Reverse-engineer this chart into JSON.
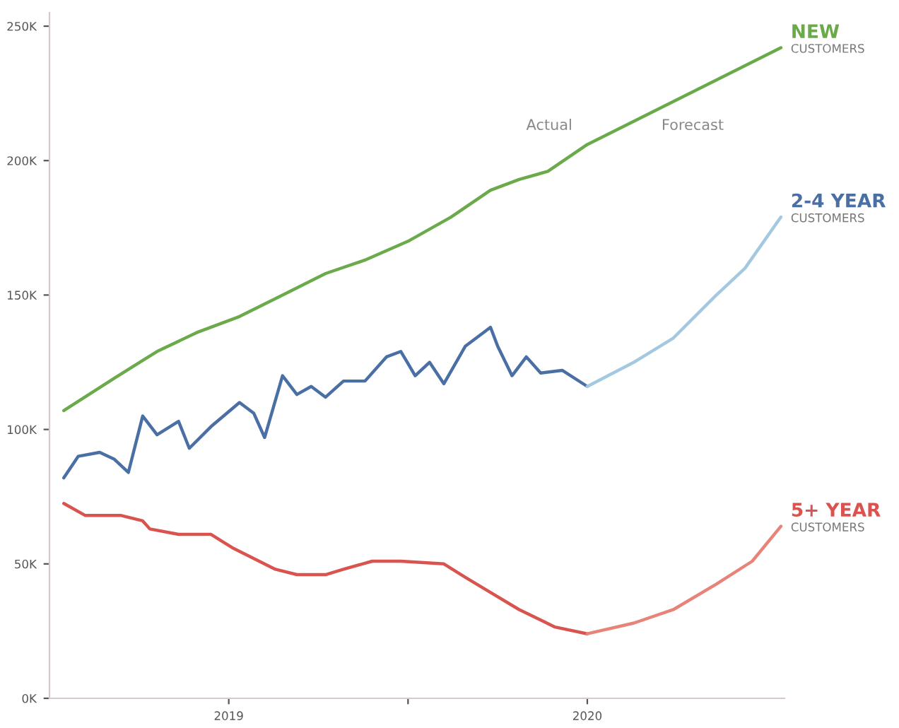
{
  "chart_data": {
    "type": "line",
    "xlim": [
      2018.5,
      2020.55
    ],
    "xticks": [
      2019,
      {
        "value": 2019.5,
        "label": null
      },
      2020
    ],
    "ylim": [
      0,
      255
    ],
    "yticks": [
      {
        "value": 0,
        "label": "0K"
      },
      {
        "value": 50,
        "label": "50K"
      },
      {
        "value": 100,
        "label": "100K"
      },
      {
        "value": 150,
        "label": "150K"
      },
      {
        "value": 200,
        "label": "200K"
      },
      {
        "value": 250,
        "label": "250K"
      }
    ],
    "grid": false,
    "legend": false,
    "marker": "none",
    "line_style": "solid",
    "annotations": [
      "Actual",
      "Forecast"
    ],
    "series": [
      {
        "name": "NEW CUSTOMERS",
        "color": "#6aaa4a",
        "x": [
          2018.54,
          2018.68,
          2018.8,
          2018.91,
          2019.03,
          2019.15,
          2019.27,
          2019.38,
          2019.5,
          2019.62,
          2019.73,
          2019.81,
          2019.89,
          2020.0,
          2020.54
        ],
        "values": [
          107,
          119,
          129,
          136,
          142,
          150,
          158,
          163,
          170,
          179,
          189,
          193,
          196,
          206,
          242
        ]
      },
      {
        "name": "2-4 YEAR CUSTOMERS",
        "color": "#4a6fa5",
        "x": [
          2018.54,
          2018.58,
          2018.64,
          2018.68,
          2018.72,
          2018.76,
          2018.8,
          2018.86,
          2018.89,
          2018.95,
          2019.03,
          2019.07,
          2019.1,
          2019.15,
          2019.19,
          2019.23,
          2019.27,
          2019.32,
          2019.38,
          2019.44,
          2019.48,
          2019.52,
          2019.56,
          2019.6,
          2019.66,
          2019.71,
          2019.73,
          2019.75,
          2019.79,
          2019.83,
          2019.87,
          2019.93,
          2020.0
        ],
        "values": [
          82,
          90,
          91.5,
          89,
          84,
          105,
          98,
          103,
          93,
          101,
          110,
          106,
          97,
          120,
          113,
          116,
          112,
          118,
          118,
          127,
          129,
          120,
          125,
          117,
          131,
          136,
          138,
          131,
          120,
          127,
          121,
          122,
          116
        ]
      },
      {
        "color": "#a4c8e0",
        "x": [
          2020.0,
          2020.13,
          2020.24,
          2020.36,
          2020.44,
          2020.54
        ],
        "values": [
          116,
          125,
          134,
          150,
          160,
          179
        ]
      },
      {
        "name": "5+ YEAR CUSTOMERS",
        "color": "#d9534f",
        "x": [
          2018.54,
          2018.6,
          2018.7,
          2018.76,
          2018.78,
          2018.86,
          2018.95,
          2019.01,
          2019.13,
          2019.19,
          2019.27,
          2019.32,
          2019.4,
          2019.48,
          2019.6,
          2019.66,
          2019.71,
          2019.81,
          2019.91,
          2020.0
        ],
        "values": [
          72.5,
          68,
          68,
          66,
          63,
          61,
          61,
          56,
          48,
          46,
          46,
          48,
          51,
          51,
          50,
          45,
          41,
          33,
          26.5,
          24
        ]
      },
      {
        "color": "#e8837a",
        "x": [
          2020.0,
          2020.13,
          2020.24,
          2020.36,
          2020.46,
          2020.54
        ],
        "values": [
          24,
          28,
          33,
          42.5,
          51,
          64
        ]
      }
    ]
  }
}
